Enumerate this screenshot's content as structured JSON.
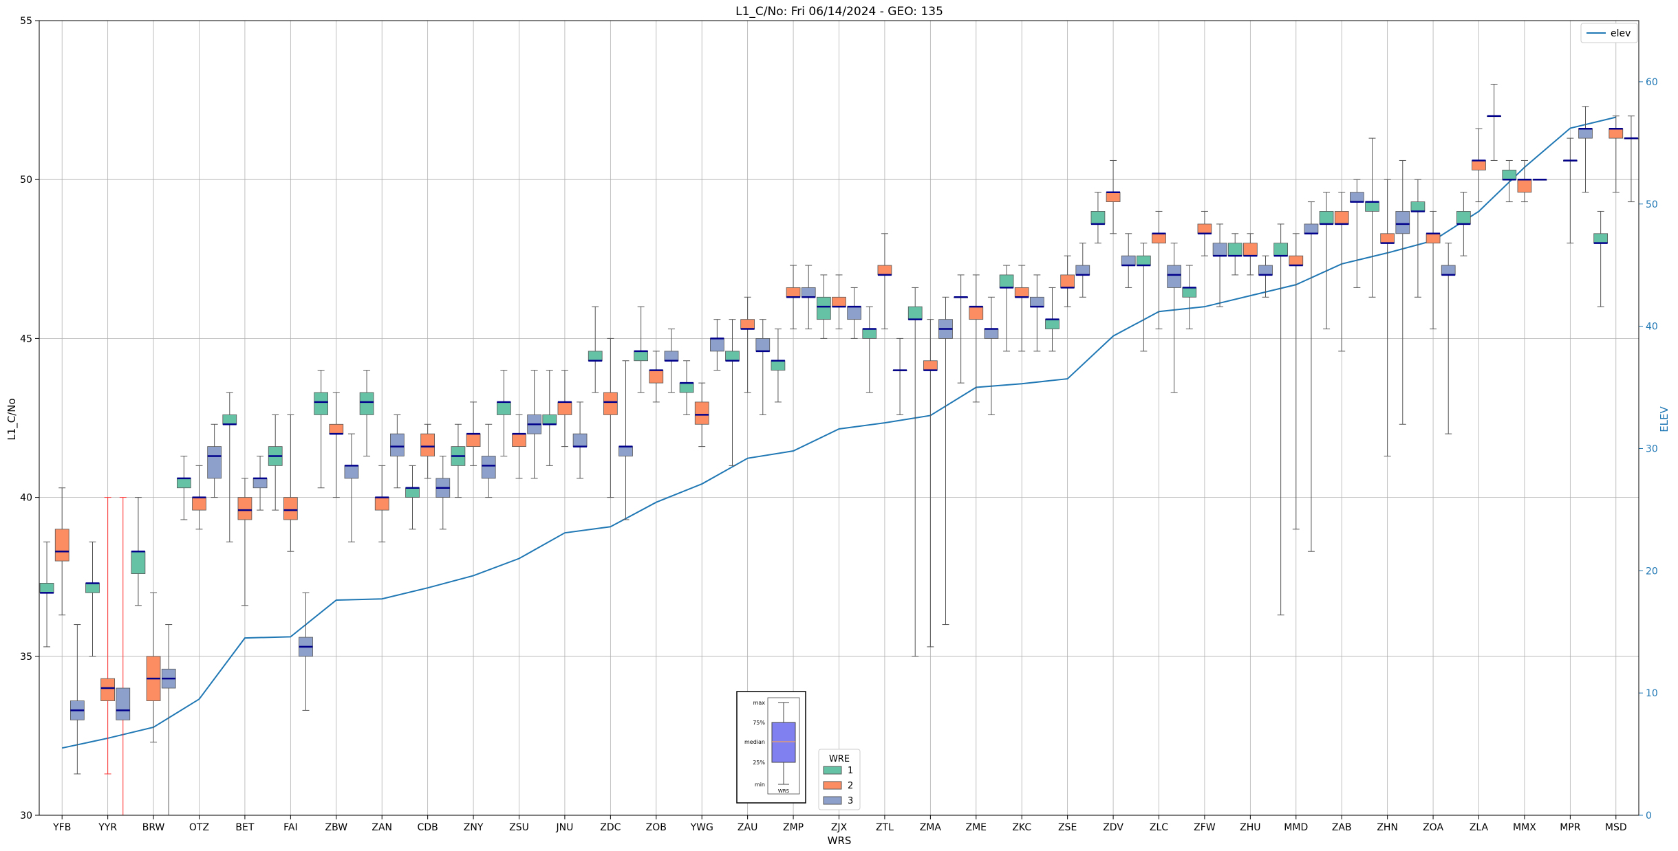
{
  "chart_data": {
    "type": "box",
    "title": "L1_C/No: Fri 06/14/2024 - GEO: 135",
    "xlabel": "WRS",
    "ylabel": "L1_C/No",
    "y2label": "ELEV",
    "ylim": [
      30,
      55
    ],
    "y2lim": [
      0,
      65
    ],
    "yticks": [
      "30",
      "35",
      "40",
      "45",
      "50",
      "55"
    ],
    "y2ticks": [
      "0",
      "10",
      "20",
      "30",
      "40",
      "50",
      "60"
    ],
    "grid": true,
    "colors": {
      "wre1": "#66c2a5",
      "wre2": "#fc8d62",
      "wre3": "#8da0cb",
      "median": "#00008b",
      "elev": "#1f77b4",
      "outlier_whisker": "#ff3333",
      "whisker": "#555555"
    },
    "categories": [
      "YFB",
      "YYR",
      "BRW",
      "OTZ",
      "BET",
      "FAI",
      "ZBW",
      "ZAN",
      "CDB",
      "ZNY",
      "ZSU",
      "JNU",
      "ZDC",
      "ZOB",
      "YWG",
      "ZAU",
      "ZMP",
      "ZJX",
      "ZTL",
      "ZMA",
      "ZME",
      "ZKC",
      "ZSE",
      "ZDV",
      "ZLC",
      "ZFW",
      "ZHU",
      "MMD",
      "ZAB",
      "ZHN",
      "ZOA",
      "ZLA",
      "MMX",
      "MPR",
      "MSD"
    ],
    "elev_legend": "elev",
    "elev": [
      5.5,
      6.3,
      7.2,
      9.5,
      14.5,
      14.6,
      17.6,
      17.7,
      18.6,
      19.6,
      21.0,
      23.1,
      23.6,
      25.6,
      27.1,
      29.2,
      29.8,
      31.6,
      32.1,
      32.7,
      35.0,
      35.3,
      35.7,
      39.2,
      41.2,
      41.6,
      42.5,
      43.4,
      45.1,
      46.0,
      47.0,
      49.4,
      53.0,
      56.2,
      57.1
    ],
    "boxes": [
      {
        "wrs": "YFB",
        "wre": 1,
        "min": 35.3,
        "q1": 37.0,
        "median": 37.0,
        "q3": 37.3,
        "max": 38.6
      },
      {
        "wrs": "YFB",
        "wre": 2,
        "min": 36.3,
        "q1": 38.0,
        "median": 38.3,
        "q3": 39.0,
        "max": 40.3
      },
      {
        "wrs": "YFB",
        "wre": 3,
        "min": 31.3,
        "q1": 33.0,
        "median": 33.3,
        "q3": 33.6,
        "max": 36.0
      },
      {
        "wrs": "YYR",
        "wre": 1,
        "min": 35.0,
        "q1": 37.0,
        "median": 37.3,
        "q3": 37.3,
        "max": 38.6
      },
      {
        "wrs": "YYR",
        "wre": 2,
        "min": 31.3,
        "q1": 33.6,
        "median": 34.0,
        "q3": 34.3,
        "max": 40.0
      },
      {
        "wrs": "YYR",
        "wre": 3,
        "min": 30.0,
        "q1": 33.0,
        "median": 33.3,
        "q3": 34.0,
        "max": 40.0
      },
      {
        "wrs": "BRW",
        "wre": 1,
        "min": 36.6,
        "q1": 37.6,
        "median": 38.3,
        "q3": 38.3,
        "max": 40.0
      },
      {
        "wrs": "BRW",
        "wre": 2,
        "min": 32.3,
        "q1": 33.6,
        "median": 34.3,
        "q3": 35.0,
        "max": 37.0
      },
      {
        "wrs": "BRW",
        "wre": 3,
        "min": 30.0,
        "q1": 34.0,
        "median": 34.3,
        "q3": 34.6,
        "max": 36.0
      },
      {
        "wrs": "OTZ",
        "wre": 1,
        "min": 39.3,
        "q1": 40.3,
        "median": 40.6,
        "q3": 40.6,
        "max": 41.3
      },
      {
        "wrs": "OTZ",
        "wre": 2,
        "min": 39.0,
        "q1": 39.6,
        "median": 40.0,
        "q3": 40.0,
        "max": 41.0
      },
      {
        "wrs": "OTZ",
        "wre": 3,
        "min": 40.0,
        "q1": 40.6,
        "median": 41.3,
        "q3": 41.6,
        "max": 42.3
      },
      {
        "wrs": "BET",
        "wre": 1,
        "min": 38.6,
        "q1": 42.3,
        "median": 42.3,
        "q3": 42.6,
        "max": 43.3
      },
      {
        "wrs": "BET",
        "wre": 2,
        "min": 36.6,
        "q1": 39.3,
        "median": 39.6,
        "q3": 40.0,
        "max": 40.6
      },
      {
        "wrs": "BET",
        "wre": 3,
        "min": 39.6,
        "q1": 40.3,
        "median": 40.6,
        "q3": 40.6,
        "max": 41.3
      },
      {
        "wrs": "FAI",
        "wre": 1,
        "min": 39.6,
        "q1": 41.0,
        "median": 41.3,
        "q3": 41.6,
        "max": 42.6
      },
      {
        "wrs": "FAI",
        "wre": 2,
        "min": 38.3,
        "q1": 39.3,
        "median": 39.6,
        "q3": 40.0,
        "max": 42.6
      },
      {
        "wrs": "FAI",
        "wre": 3,
        "min": 33.3,
        "q1": 35.0,
        "median": 35.3,
        "q3": 35.6,
        "max": 37.0
      },
      {
        "wrs": "ZBW",
        "wre": 1,
        "min": 40.3,
        "q1": 42.6,
        "median": 43.0,
        "q3": 43.3,
        "max": 44.0
      },
      {
        "wrs": "ZBW",
        "wre": 2,
        "min": 40.0,
        "q1": 42.0,
        "median": 42.0,
        "q3": 42.3,
        "max": 43.3
      },
      {
        "wrs": "ZBW",
        "wre": 3,
        "min": 38.6,
        "q1": 40.6,
        "median": 41.0,
        "q3": 41.0,
        "max": 42.0
      },
      {
        "wrs": "ZAN",
        "wre": 1,
        "min": 41.3,
        "q1": 42.6,
        "median": 43.0,
        "q3": 43.3,
        "max": 44.0
      },
      {
        "wrs": "ZAN",
        "wre": 2,
        "min": 38.6,
        "q1": 39.6,
        "median": 40.0,
        "q3": 40.0,
        "max": 41.0
      },
      {
        "wrs": "ZAN",
        "wre": 3,
        "min": 40.3,
        "q1": 41.3,
        "median": 41.6,
        "q3": 42.0,
        "max": 42.6
      },
      {
        "wrs": "CDB",
        "wre": 1,
        "min": 39.0,
        "q1": 40.0,
        "median": 40.3,
        "q3": 40.3,
        "max": 41.0
      },
      {
        "wrs": "CDB",
        "wre": 2,
        "min": 40.6,
        "q1": 41.3,
        "median": 41.6,
        "q3": 42.0,
        "max": 42.3
      },
      {
        "wrs": "CDB",
        "wre": 3,
        "min": 39.0,
        "q1": 40.0,
        "median": 40.3,
        "q3": 40.6,
        "max": 41.3
      },
      {
        "wrs": "ZNY",
        "wre": 1,
        "min": 40.0,
        "q1": 41.0,
        "median": 41.3,
        "q3": 41.6,
        "max": 42.3
      },
      {
        "wrs": "ZNY",
        "wre": 2,
        "min": 41.0,
        "q1": 41.6,
        "median": 42.0,
        "q3": 42.0,
        "max": 43.0
      },
      {
        "wrs": "ZNY",
        "wre": 3,
        "min": 40.0,
        "q1": 40.6,
        "median": 41.0,
        "q3": 41.3,
        "max": 42.3
      },
      {
        "wrs": "ZSU",
        "wre": 1,
        "min": 41.3,
        "q1": 42.6,
        "median": 43.0,
        "q3": 43.0,
        "max": 44.0
      },
      {
        "wrs": "ZSU",
        "wre": 2,
        "min": 40.6,
        "q1": 41.6,
        "median": 42.0,
        "q3": 42.0,
        "max": 42.6
      },
      {
        "wrs": "ZSU",
        "wre": 3,
        "min": 40.6,
        "q1": 42.0,
        "median": 42.3,
        "q3": 42.6,
        "max": 44.0
      },
      {
        "wrs": "JNU",
        "wre": 1,
        "min": 41.0,
        "q1": 42.3,
        "median": 42.3,
        "q3": 42.6,
        "max": 44.0
      },
      {
        "wrs": "JNU",
        "wre": 2,
        "min": 41.6,
        "q1": 42.6,
        "median": 43.0,
        "q3": 43.0,
        "max": 44.0
      },
      {
        "wrs": "JNU",
        "wre": 3,
        "min": 40.6,
        "q1": 41.6,
        "median": 41.6,
        "q3": 42.0,
        "max": 43.0
      },
      {
        "wrs": "ZDC",
        "wre": 1,
        "min": 43.3,
        "q1": 44.3,
        "median": 44.3,
        "q3": 44.6,
        "max": 46.0
      },
      {
        "wrs": "ZDC",
        "wre": 2,
        "min": 40.0,
        "q1": 42.6,
        "median": 43.0,
        "q3": 43.3,
        "max": 45.0
      },
      {
        "wrs": "ZDC",
        "wre": 3,
        "min": 39.3,
        "q1": 41.3,
        "median": 41.6,
        "q3": 41.6,
        "max": 44.3
      },
      {
        "wrs": "ZOB",
        "wre": 1,
        "min": 43.3,
        "q1": 44.3,
        "median": 44.6,
        "q3": 44.6,
        "max": 46.0
      },
      {
        "wrs": "ZOB",
        "wre": 2,
        "min": 43.0,
        "q1": 43.6,
        "median": 44.0,
        "q3": 44.0,
        "max": 44.6
      },
      {
        "wrs": "ZOB",
        "wre": 3,
        "min": 43.3,
        "q1": 44.3,
        "median": 44.3,
        "q3": 44.6,
        "max": 45.3
      },
      {
        "wrs": "YWG",
        "wre": 1,
        "min": 42.6,
        "q1": 43.3,
        "median": 43.6,
        "q3": 43.6,
        "max": 44.3
      },
      {
        "wrs": "YWG",
        "wre": 2,
        "min": 41.6,
        "q1": 42.3,
        "median": 42.6,
        "q3": 43.0,
        "max": 43.6
      },
      {
        "wrs": "YWG",
        "wre": 3,
        "min": 44.0,
        "q1": 44.6,
        "median": 45.0,
        "q3": 45.0,
        "max": 45.6
      },
      {
        "wrs": "ZAU",
        "wre": 1,
        "min": 41.0,
        "q1": 44.3,
        "median": 44.3,
        "q3": 44.6,
        "max": 45.6
      },
      {
        "wrs": "ZAU",
        "wre": 2,
        "min": 43.3,
        "q1": 45.3,
        "median": 45.3,
        "q3": 45.6,
        "max": 46.3
      },
      {
        "wrs": "ZAU",
        "wre": 3,
        "min": 42.6,
        "q1": 44.6,
        "median": 44.6,
        "q3": 45.0,
        "max": 45.6
      },
      {
        "wrs": "ZMP",
        "wre": 1,
        "min": 43.0,
        "q1": 44.0,
        "median": 44.3,
        "q3": 44.3,
        "max": 45.3
      },
      {
        "wrs": "ZMP",
        "wre": 2,
        "min": 45.3,
        "q1": 46.3,
        "median": 46.3,
        "q3": 46.6,
        "max": 47.3
      },
      {
        "wrs": "ZMP",
        "wre": 3,
        "min": 45.3,
        "q1": 46.3,
        "median": 46.3,
        "q3": 46.6,
        "max": 47.3
      },
      {
        "wrs": "ZJX",
        "wre": 1,
        "min": 45.0,
        "q1": 45.6,
        "median": 46.0,
        "q3": 46.3,
        "max": 47.0
      },
      {
        "wrs": "ZJX",
        "wre": 2,
        "min": 45.3,
        "q1": 46.0,
        "median": 46.0,
        "q3": 46.3,
        "max": 47.0
      },
      {
        "wrs": "ZJX",
        "wre": 3,
        "min": 45.0,
        "q1": 45.6,
        "median": 46.0,
        "q3": 46.0,
        "max": 46.6
      },
      {
        "wrs": "ZTL",
        "wre": 1,
        "min": 43.3,
        "q1": 45.0,
        "median": 45.3,
        "q3": 45.3,
        "max": 46.0
      },
      {
        "wrs": "ZTL",
        "wre": 2,
        "min": 45.3,
        "q1": 47.0,
        "median": 47.0,
        "q3": 47.3,
        "max": 48.3
      },
      {
        "wrs": "ZTL",
        "wre": 3,
        "min": 42.6,
        "q1": 44.0,
        "median": 44.0,
        "q3": 44.0,
        "max": 45.0
      },
      {
        "wrs": "ZMA",
        "wre": 1,
        "min": 35.0,
        "q1": 45.6,
        "median": 45.6,
        "q3": 46.0,
        "max": 46.6
      },
      {
        "wrs": "ZMA",
        "wre": 2,
        "min": 35.3,
        "q1": 44.0,
        "median": 44.0,
        "q3": 44.3,
        "max": 45.6
      },
      {
        "wrs": "ZMA",
        "wre": 3,
        "min": 36.0,
        "q1": 45.0,
        "median": 45.3,
        "q3": 45.6,
        "max": 46.3
      },
      {
        "wrs": "ZME",
        "wre": 1,
        "min": 43.6,
        "q1": 46.3,
        "median": 46.3,
        "q3": 46.3,
        "max": 47.0
      },
      {
        "wrs": "ZME",
        "wre": 2,
        "min": 43.0,
        "q1": 45.6,
        "median": 46.0,
        "q3": 46.0,
        "max": 47.0
      },
      {
        "wrs": "ZME",
        "wre": 3,
        "min": 42.6,
        "q1": 45.0,
        "median": 45.3,
        "q3": 45.3,
        "max": 46.3
      },
      {
        "wrs": "ZKC",
        "wre": 1,
        "min": 44.6,
        "q1": 46.6,
        "median": 46.6,
        "q3": 47.0,
        "max": 47.3
      },
      {
        "wrs": "ZKC",
        "wre": 2,
        "min": 44.6,
        "q1": 46.3,
        "median": 46.3,
        "q3": 46.6,
        "max": 47.3
      },
      {
        "wrs": "ZKC",
        "wre": 3,
        "min": 44.6,
        "q1": 46.0,
        "median": 46.0,
        "q3": 46.3,
        "max": 47.0
      },
      {
        "wrs": "ZSE",
        "wre": 1,
        "min": 44.6,
        "q1": 45.3,
        "median": 45.6,
        "q3": 45.6,
        "max": 46.6
      },
      {
        "wrs": "ZSE",
        "wre": 2,
        "min": 46.0,
        "q1": 46.6,
        "median": 46.6,
        "q3": 47.0,
        "max": 47.6
      },
      {
        "wrs": "ZSE",
        "wre": 3,
        "min": 46.3,
        "q1": 47.0,
        "median": 47.0,
        "q3": 47.3,
        "max": 48.0
      },
      {
        "wrs": "ZDV",
        "wre": 1,
        "min": 48.0,
        "q1": 48.6,
        "median": 48.6,
        "q3": 49.0,
        "max": 49.6
      },
      {
        "wrs": "ZDV",
        "wre": 2,
        "min": 48.3,
        "q1": 49.3,
        "median": 49.6,
        "q3": 49.6,
        "max": 50.6
      },
      {
        "wrs": "ZDV",
        "wre": 3,
        "min": 46.6,
        "q1": 47.3,
        "median": 47.3,
        "q3": 47.6,
        "max": 48.3
      },
      {
        "wrs": "ZLC",
        "wre": 1,
        "min": 44.6,
        "q1": 47.3,
        "median": 47.3,
        "q3": 47.6,
        "max": 48.0
      },
      {
        "wrs": "ZLC",
        "wre": 2,
        "min": 45.3,
        "q1": 48.0,
        "median": 48.3,
        "q3": 48.3,
        "max": 49.0
      },
      {
        "wrs": "ZLC",
        "wre": 3,
        "min": 43.3,
        "q1": 46.6,
        "median": 47.0,
        "q3": 47.3,
        "max": 48.0
      },
      {
        "wrs": "ZFW",
        "wre": 1,
        "min": 45.3,
        "q1": 46.3,
        "median": 46.6,
        "q3": 46.6,
        "max": 47.3
      },
      {
        "wrs": "ZFW",
        "wre": 2,
        "min": 47.6,
        "q1": 48.3,
        "median": 48.3,
        "q3": 48.6,
        "max": 49.0
      },
      {
        "wrs": "ZFW",
        "wre": 3,
        "min": 46.0,
        "q1": 47.6,
        "median": 47.6,
        "q3": 48.0,
        "max": 48.6
      },
      {
        "wrs": "ZHU",
        "wre": 1,
        "min": 47.0,
        "q1": 47.6,
        "median": 47.6,
        "q3": 48.0,
        "max": 48.3
      },
      {
        "wrs": "ZHU",
        "wre": 2,
        "min": 47.0,
        "q1": 47.6,
        "median": 47.6,
        "q3": 48.0,
        "max": 48.3
      },
      {
        "wrs": "ZHU",
        "wre": 3,
        "min": 46.3,
        "q1": 47.0,
        "median": 47.0,
        "q3": 47.3,
        "max": 47.6
      },
      {
        "wrs": "MMD",
        "wre": 1,
        "min": 36.3,
        "q1": 47.6,
        "median": 47.6,
        "q3": 48.0,
        "max": 48.6
      },
      {
        "wrs": "MMD",
        "wre": 2,
        "min": 39.0,
        "q1": 47.3,
        "median": 47.3,
        "q3": 47.6,
        "max": 48.3
      },
      {
        "wrs": "MMD",
        "wre": 3,
        "min": 38.3,
        "q1": 48.3,
        "median": 48.3,
        "q3": 48.6,
        "max": 49.3
      },
      {
        "wrs": "ZAB",
        "wre": 1,
        "min": 45.3,
        "q1": 48.6,
        "median": 48.6,
        "q3": 49.0,
        "max": 49.6
      },
      {
        "wrs": "ZAB",
        "wre": 2,
        "min": 44.6,
        "q1": 48.6,
        "median": 48.6,
        "q3": 49.0,
        "max": 49.6
      },
      {
        "wrs": "ZAB",
        "wre": 3,
        "min": 46.6,
        "q1": 49.3,
        "median": 49.3,
        "q3": 49.6,
        "max": 50.0
      },
      {
        "wrs": "ZHN",
        "wre": 1,
        "min": 46.3,
        "q1": 49.0,
        "median": 49.3,
        "q3": 49.3,
        "max": 51.3
      },
      {
        "wrs": "ZHN",
        "wre": 2,
        "min": 41.3,
        "q1": 48.0,
        "median": 48.0,
        "q3": 48.3,
        "max": 50.0
      },
      {
        "wrs": "ZHN",
        "wre": 3,
        "min": 42.3,
        "q1": 48.3,
        "median": 48.6,
        "q3": 49.0,
        "max": 50.6
      },
      {
        "wrs": "ZOA",
        "wre": 1,
        "min": 46.3,
        "q1": 49.0,
        "median": 49.0,
        "q3": 49.3,
        "max": 50.0
      },
      {
        "wrs": "ZOA",
        "wre": 2,
        "min": 45.3,
        "q1": 48.0,
        "median": 48.3,
        "q3": 48.3,
        "max": 49.0
      },
      {
        "wrs": "ZOA",
        "wre": 3,
        "min": 42.0,
        "q1": 47.0,
        "median": 47.0,
        "q3": 47.3,
        "max": 48.0
      },
      {
        "wrs": "ZLA",
        "wre": 1,
        "min": 47.6,
        "q1": 48.6,
        "median": 48.6,
        "q3": 49.0,
        "max": 49.6
      },
      {
        "wrs": "ZLA",
        "wre": 2,
        "min": 49.3,
        "q1": 50.3,
        "median": 50.6,
        "q3": 50.6,
        "max": 51.6
      },
      {
        "wrs": "ZLA",
        "wre": 3,
        "min": 50.6,
        "q1": 52.0,
        "median": 52.0,
        "q3": 52.0,
        "max": 53.0
      },
      {
        "wrs": "MMX",
        "wre": 1,
        "min": 49.3,
        "q1": 50.0,
        "median": 50.0,
        "q3": 50.3,
        "max": 50.6
      },
      {
        "wrs": "MMX",
        "wre": 2,
        "min": 49.3,
        "q1": 49.6,
        "median": 50.0,
        "q3": 50.0,
        "max": 50.6
      },
      {
        "wrs": "MMX",
        "wre": 3,
        "min": 50.0,
        "q1": 50.0,
        "median": 50.0,
        "q3": 50.0,
        "max": 50.0
      },
      {
        "wrs": "MPR",
        "wre": 2,
        "min": 48.0,
        "q1": 50.6,
        "median": 50.6,
        "q3": 50.6,
        "max": 51.3
      },
      {
        "wrs": "MPR",
        "wre": 3,
        "min": 49.6,
        "q1": 51.3,
        "median": 51.6,
        "q3": 51.6,
        "max": 52.3
      },
      {
        "wrs": "MSD",
        "wre": 1,
        "min": 46.0,
        "q1": 48.0,
        "median": 48.0,
        "q3": 48.3,
        "max": 49.0
      },
      {
        "wrs": "MSD",
        "wre": 2,
        "min": 49.6,
        "q1": 51.3,
        "median": 51.6,
        "q3": 51.6,
        "max": 52.0
      },
      {
        "wrs": "MSD",
        "wre": 3,
        "min": 49.3,
        "q1": 51.3,
        "median": 51.3,
        "q3": 51.3,
        "max": 52.0
      }
    ],
    "legend": {
      "title": "WRE",
      "entries": [
        "1",
        "2",
        "3"
      ]
    },
    "inset_labels": [
      "max",
      "75%",
      "median",
      "25%",
      "min",
      "WRS"
    ]
  }
}
